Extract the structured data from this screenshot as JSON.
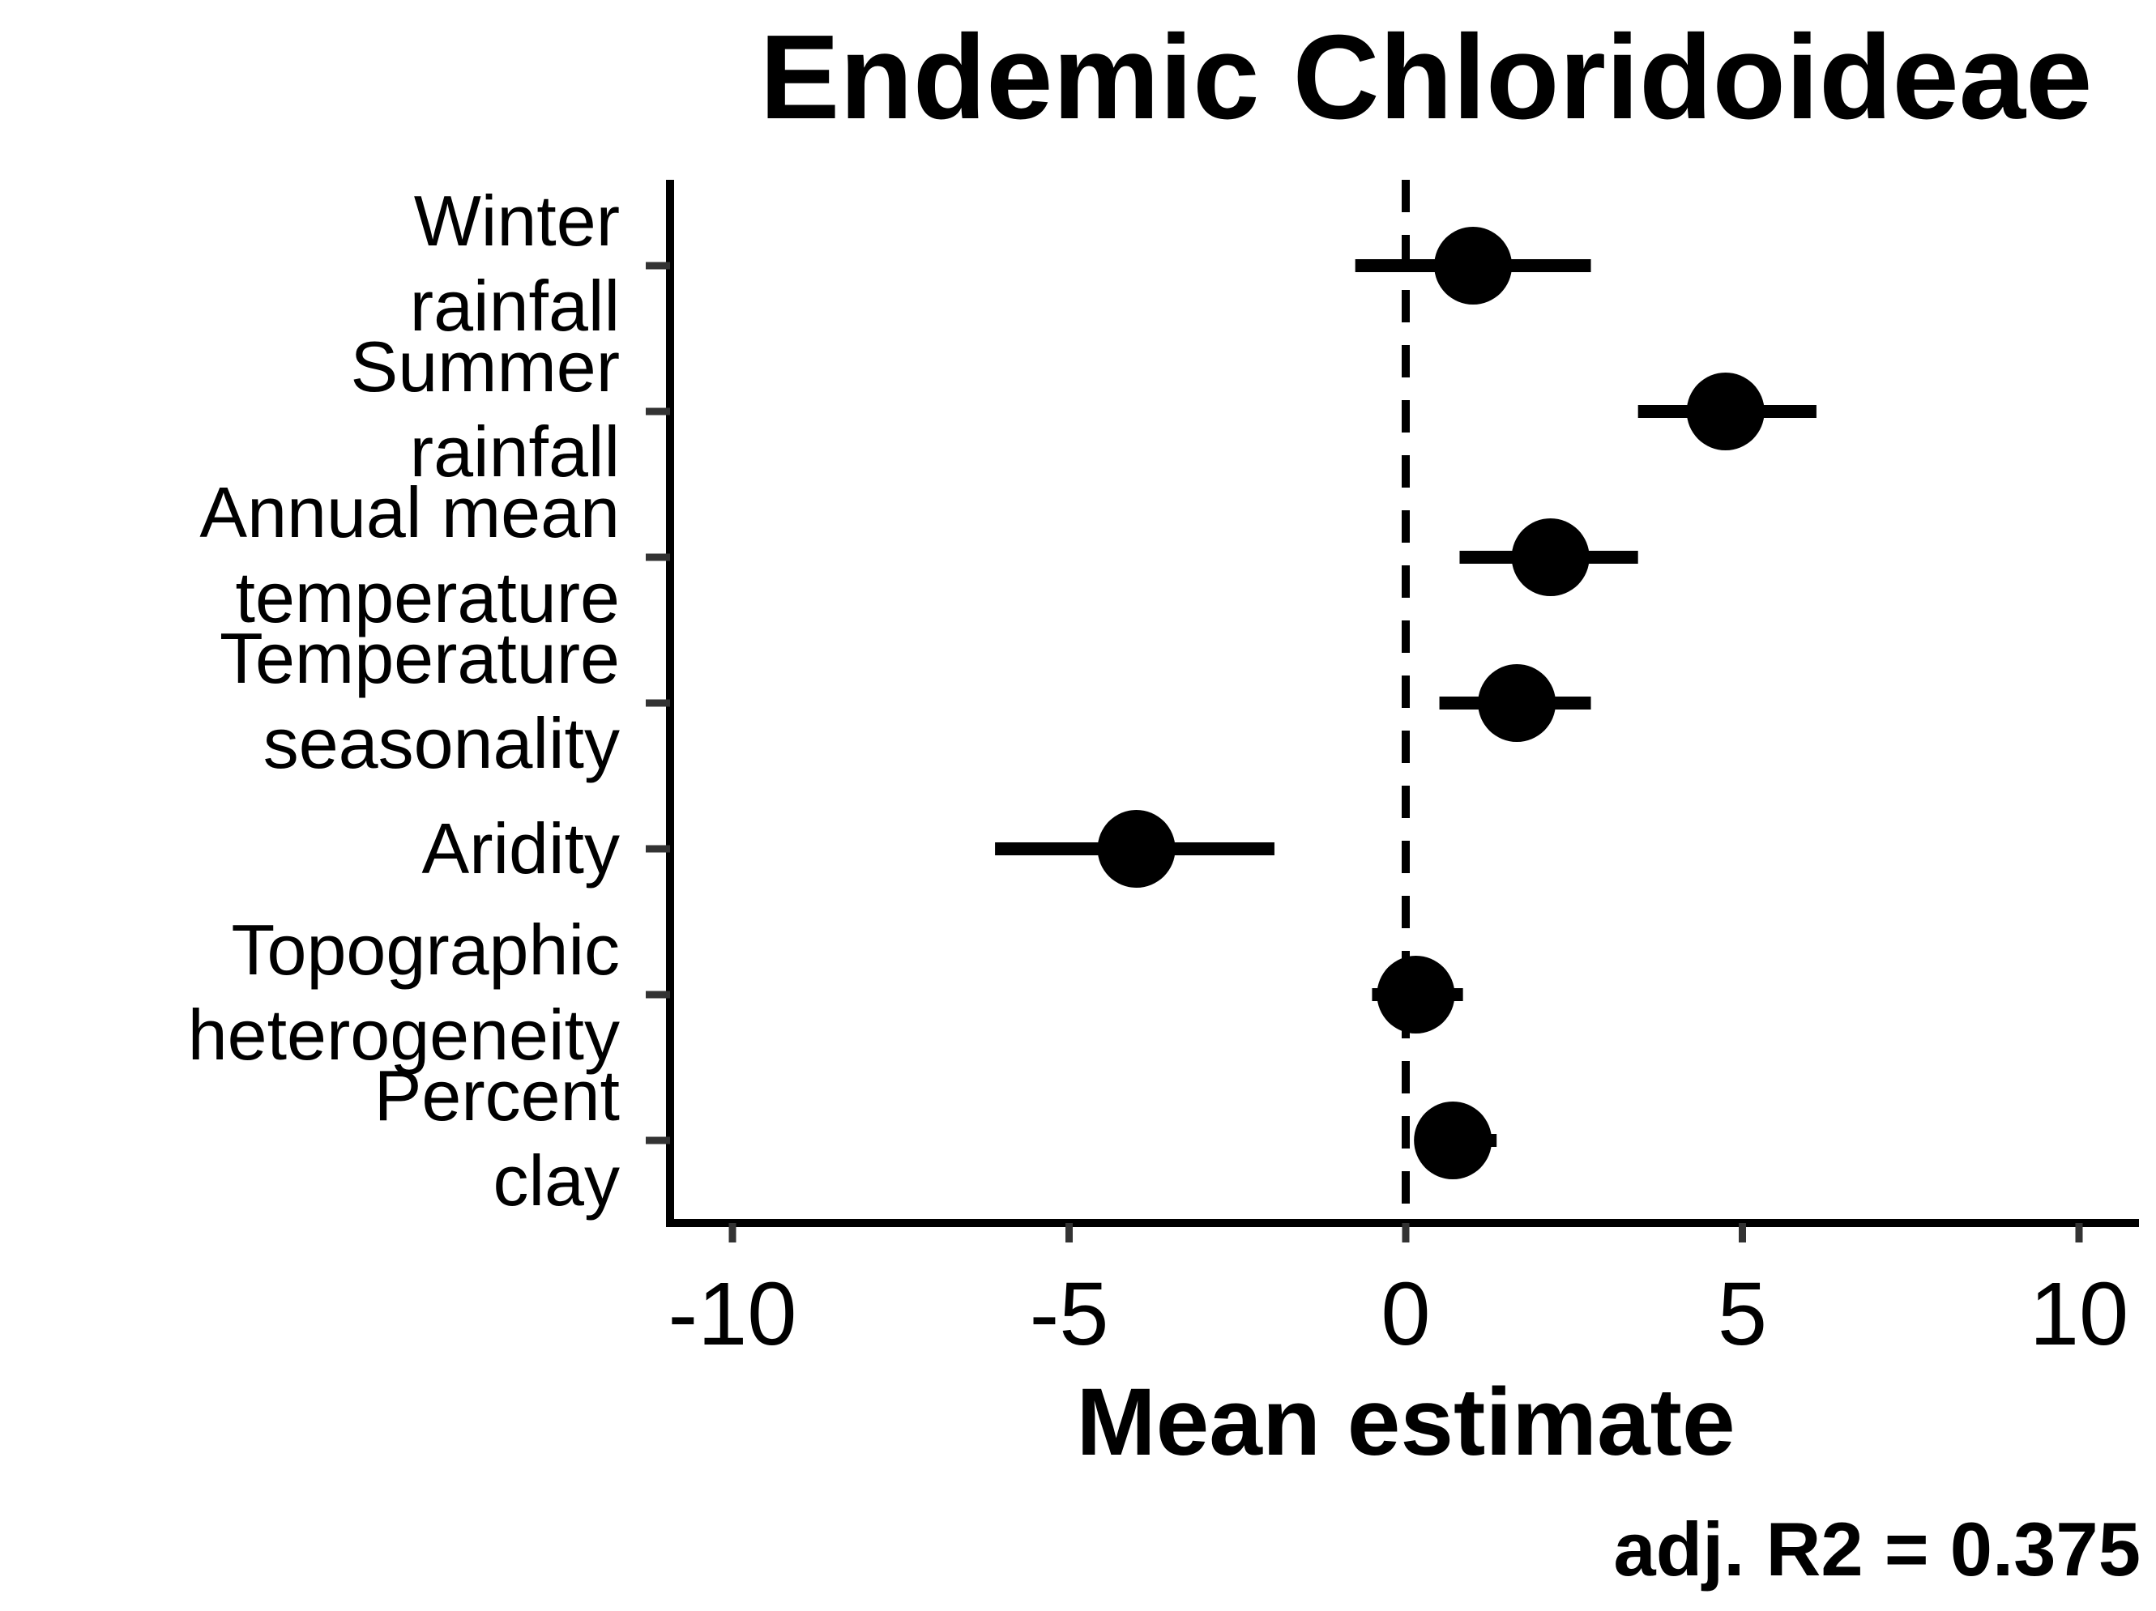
{
  "chart_data": {
    "type": "scatter",
    "subtype": "coefficient-plot",
    "title": "Endemic Chloridoideae",
    "xlabel": "Mean estimate",
    "ylabel": "",
    "xlim": [
      -11,
      11
    ],
    "xticks": [
      -10,
      -5,
      0,
      5,
      10
    ],
    "xtick_labels": [
      "-10",
      "-5",
      "0",
      "5",
      "10"
    ],
    "reference_line": {
      "x": 0,
      "style": "dashed"
    },
    "grid": false,
    "annotation": "adj. R2 = 0.375",
    "series": [
      {
        "categories": [
          {
            "line1": "Winter",
            "line2": "rainfall"
          },
          {
            "line1": "Summer",
            "line2": "rainfall"
          },
          {
            "line1": "Annual mean",
            "line2": "temperature"
          },
          {
            "line1": "Temperature",
            "line2": "seasonality"
          },
          {
            "line1": "Aridity",
            "line2": ""
          },
          {
            "line1": "Topographic",
            "line2": "heterogeneity"
          },
          {
            "line1": "Percent",
            "line2": "clay"
          }
        ],
        "estimate": [
          1.0,
          4.75,
          2.15,
          1.65,
          -4.0,
          0.15,
          0.7
        ],
        "lower": [
          -0.75,
          3.45,
          0.8,
          0.5,
          -6.1,
          -0.5,
          0.15
        ],
        "upper": [
          2.75,
          6.1,
          3.45,
          2.75,
          -1.95,
          0.85,
          1.35
        ]
      }
    ],
    "colors": {
      "point": "#000000",
      "axis": "#000000",
      "tick": "#333333",
      "reference": "#000000"
    }
  }
}
